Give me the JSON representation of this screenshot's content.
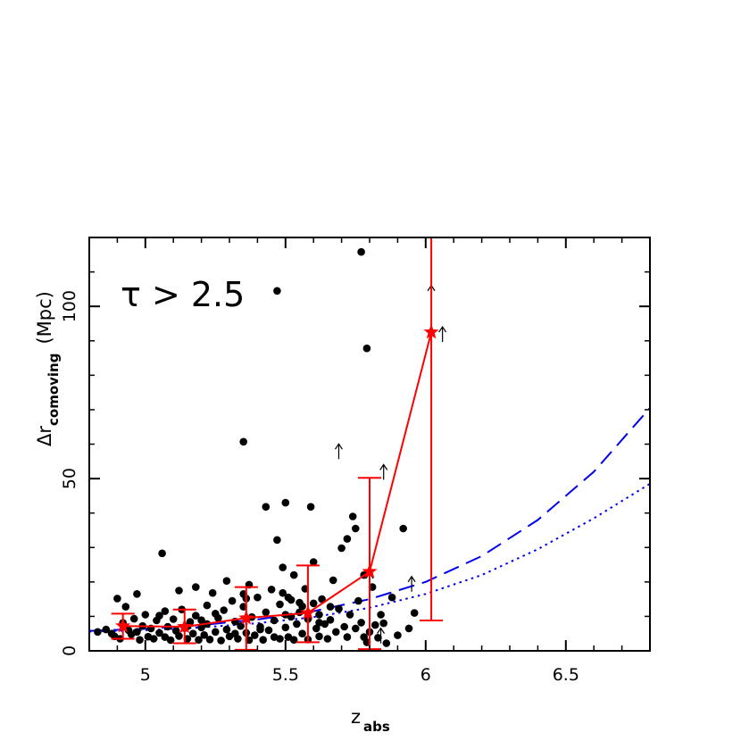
{
  "chart_data": {
    "type": "scatter",
    "title": "",
    "annotation": "τ > 2.5",
    "xlabel": {
      "main": "z",
      "sub": "abs"
    },
    "ylabel": {
      "main": "Δr",
      "sub": "comoving",
      "unit": "(Mpc)"
    },
    "xlim": [
      4.8,
      6.8
    ],
    "ylim": [
      0,
      120
    ],
    "xticks": [
      5,
      5.5,
      6,
      6.5
    ],
    "xtick_labels": [
      "5",
      "5.5",
      "6",
      "6.5"
    ],
    "yticks": [
      0,
      50,
      100
    ],
    "ytick_labels": [
      "0",
      "50",
      "100"
    ],
    "grid": false,
    "colors": {
      "points": "#000000",
      "binned": "#ff0000",
      "model": "#0000ee"
    },
    "points": [
      [
        4.83,
        5.5
      ],
      [
        4.86,
        6.2
      ],
      [
        4.88,
        5.0
      ],
      [
        4.89,
        4.2
      ],
      [
        4.9,
        15.2
      ],
      [
        4.91,
        3.5
      ],
      [
        4.92,
        8.1
      ],
      [
        4.93,
        12.8
      ],
      [
        4.94,
        6.0
      ],
      [
        4.95,
        4.8
      ],
      [
        4.96,
        9.3
      ],
      [
        4.97,
        16.5
      ],
      [
        4.97,
        5.5
      ],
      [
        4.98,
        3.2
      ],
      [
        4.99,
        7.2
      ],
      [
        5.0,
        10.5
      ],
      [
        5.01,
        4.1
      ],
      [
        5.02,
        6.5
      ],
      [
        5.03,
        3.5
      ],
      [
        5.04,
        8.8
      ],
      [
        5.05,
        5.2
      ],
      [
        5.06,
        28.3
      ],
      [
        5.07,
        11.5
      ],
      [
        5.07,
        4.0
      ],
      [
        5.08,
        7.0
      ],
      [
        5.09,
        3.1
      ],
      [
        5.1,
        9.2
      ],
      [
        5.11,
        5.8
      ],
      [
        5.12,
        17.5
      ],
      [
        5.12,
        4.3
      ],
      [
        5.13,
        12.0
      ],
      [
        5.14,
        6.6
      ],
      [
        5.15,
        3.5
      ],
      [
        5.16,
        8.4
      ],
      [
        5.17,
        5.0
      ],
      [
        5.18,
        18.5
      ],
      [
        5.18,
        10.2
      ],
      [
        5.19,
        3.2
      ],
      [
        5.2,
        6.8
      ],
      [
        5.21,
        4.6
      ],
      [
        5.22,
        13.2
      ],
      [
        5.22,
        7.8
      ],
      [
        5.23,
        3.3
      ],
      [
        5.24,
        16.8
      ],
      [
        5.25,
        5.5
      ],
      [
        5.26,
        9.5
      ],
      [
        5.27,
        3.0
      ],
      [
        5.28,
        11.8
      ],
      [
        5.29,
        6.2
      ],
      [
        5.29,
        20.3
      ],
      [
        5.3,
        4.2
      ],
      [
        5.31,
        14.5
      ],
      [
        5.32,
        8.5
      ],
      [
        5.33,
        3.5
      ],
      [
        5.34,
        7.2
      ],
      [
        5.35,
        60.7
      ],
      [
        5.35,
        12.8
      ],
      [
        5.36,
        5.2
      ],
      [
        5.37,
        3.1
      ],
      [
        5.37,
        19.2
      ],
      [
        5.38,
        9.8
      ],
      [
        5.39,
        4.5
      ],
      [
        5.4,
        15.5
      ],
      [
        5.41,
        7.0
      ],
      [
        5.42,
        3.2
      ],
      [
        5.43,
        41.8
      ],
      [
        5.43,
        11.2
      ],
      [
        5.44,
        6.0
      ],
      [
        5.45,
        17.8
      ],
      [
        5.46,
        4.0
      ],
      [
        5.46,
        8.8
      ],
      [
        5.47,
        32.2
      ],
      [
        5.48,
        13.5
      ],
      [
        5.48,
        3.5
      ],
      [
        5.49,
        24.2
      ],
      [
        5.5,
        6.8
      ],
      [
        5.5,
        43.0
      ],
      [
        5.5,
        10.5
      ],
      [
        5.51,
        4.0
      ],
      [
        5.52,
        14.8
      ],
      [
        5.53,
        3.2
      ],
      [
        5.53,
        22.0
      ],
      [
        5.54,
        7.8
      ],
      [
        5.55,
        11.2
      ],
      [
        5.56,
        5.0
      ],
      [
        5.57,
        18.0
      ],
      [
        5.58,
        9.2
      ],
      [
        5.58,
        3.3
      ],
      [
        5.59,
        41.8
      ],
      [
        5.6,
        13.8
      ],
      [
        5.6,
        25.8
      ],
      [
        5.61,
        6.5
      ],
      [
        5.62,
        10.5
      ],
      [
        5.62,
        4.2
      ],
      [
        5.63,
        15.0
      ],
      [
        5.64,
        7.8
      ],
      [
        5.65,
        3.5
      ],
      [
        5.66,
        9.0
      ],
      [
        5.67,
        20.5
      ],
      [
        5.68,
        5.5
      ],
      [
        5.69,
        12.2
      ],
      [
        5.7,
        29.8
      ],
      [
        5.71,
        7.0
      ],
      [
        5.72,
        32.5
      ],
      [
        5.72,
        4.0
      ],
      [
        5.73,
        10.5
      ],
      [
        5.74,
        39.0
      ],
      [
        5.75,
        35.5
      ],
      [
        5.75,
        6.5
      ],
      [
        5.76,
        14.5
      ],
      [
        5.77,
        115.8
      ],
      [
        5.77,
        8.2
      ],
      [
        5.78,
        22.0
      ],
      [
        5.78,
        4.0
      ],
      [
        5.79,
        87.8
      ],
      [
        5.79,
        2.5
      ],
      [
        5.8,
        5.5
      ],
      [
        5.81,
        18.5
      ],
      [
        5.82,
        7.5
      ],
      [
        5.83,
        3.8
      ],
      [
        5.84,
        10.5
      ],
      [
        5.85,
        8.0
      ],
      [
        5.86,
        2.2
      ],
      [
        5.88,
        15.5
      ],
      [
        5.9,
        4.5
      ],
      [
        5.92,
        35.5
      ],
      [
        5.94,
        6.5
      ],
      [
        5.96,
        11.0
      ],
      [
        5.47,
        104.5
      ],
      [
        5.51,
        15.5
      ],
      [
        5.55,
        14.0
      ],
      [
        5.25,
        10.8
      ],
      [
        5.41,
        6.2
      ],
      [
        5.32,
        5.0
      ],
      [
        5.2,
        8.9
      ],
      [
        5.15,
        7.1
      ],
      [
        5.05,
        10.2
      ],
      [
        5.36,
        15.2
      ],
      [
        5.49,
        16.8
      ],
      [
        5.52,
        9.9
      ],
      [
        5.56,
        12.9
      ],
      [
        5.62,
        8.2
      ],
      [
        5.35,
        16.5
      ],
      [
        5.66,
        12.8
      ]
    ],
    "lower_limits": [
      [
        5.69,
        58.0
      ],
      [
        5.85,
        52.0
      ],
      [
        6.02,
        104.0
      ],
      [
        6.06,
        92.0
      ],
      [
        5.95,
        19.5
      ],
      [
        5.8,
        20.5
      ],
      [
        5.84,
        4.5
      ]
    ],
    "binned_series": {
      "name": "",
      "x": [
        4.92,
        5.14,
        5.36,
        5.58,
        5.8,
        6.02
      ],
      "y": [
        7.2,
        7.0,
        9.5,
        11.0,
        23.0,
        92.5
      ],
      "yerr_low": [
        3.5,
        2.2,
        0.3,
        2.5,
        0.5,
        8.8
      ],
      "yerr_high": [
        10.8,
        12.0,
        18.5,
        24.8,
        50.2,
        120.0
      ]
    },
    "model_curves": [
      {
        "style": "dashed",
        "x": [
          4.8,
          5.0,
          5.2,
          5.4,
          5.6,
          5.8,
          6.0,
          6.2,
          6.4,
          6.6,
          6.8
        ],
        "y": [
          5.8,
          6.4,
          7.5,
          9.1,
          11.5,
          15.0,
          20.0,
          27.5,
          38.0,
          52.0,
          70.5
        ]
      },
      {
        "style": "dotted",
        "x": [
          4.8,
          5.0,
          5.2,
          5.4,
          5.6,
          5.8,
          6.0,
          6.2,
          6.4,
          6.6,
          6.8
        ],
        "y": [
          5.6,
          6.0,
          6.8,
          8.0,
          9.8,
          12.5,
          16.5,
          22.0,
          29.5,
          38.5,
          48.5
        ]
      }
    ]
  }
}
